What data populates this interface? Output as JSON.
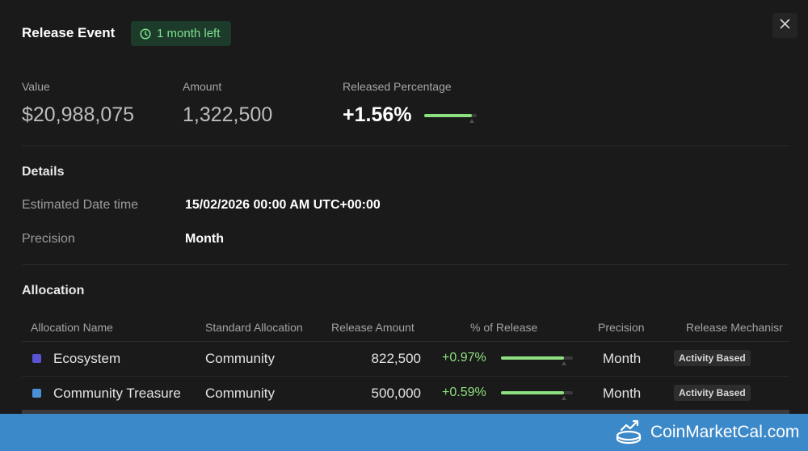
{
  "header": {
    "title": "Release Event",
    "badge": "1 month left"
  },
  "stats": {
    "value": {
      "label": "Value",
      "value": "$20,988,075"
    },
    "amount": {
      "label": "Amount",
      "value": "1,322,500"
    },
    "released": {
      "label": "Released Percentage",
      "value": "+1.56%",
      "progress": 0.9
    }
  },
  "details": {
    "title": "Details",
    "date_label": "Estimated Date time",
    "date_value": "15/02/2026 00:00 AM UTC+00:00",
    "precision_label": "Precision",
    "precision_value": "Month"
  },
  "allocation": {
    "title": "Allocation",
    "columns": [
      "Allocation Name",
      "Standard Allocation",
      "Release Amount",
      "% of Release",
      "Precision",
      "Release Mechanisr"
    ],
    "rows": [
      {
        "color": "#5a53d4",
        "name": "Ecosystem",
        "standard": "Community",
        "amount": "822,500",
        "pct": "+0.97%",
        "progress": 0.88,
        "precision": "Month",
        "mechanism": "Activity Based"
      },
      {
        "color": "#4a90d9",
        "name": "Community Treasure",
        "standard": "Community",
        "amount": "500,000",
        "pct": "+0.59%",
        "progress": 0.88,
        "precision": "Month",
        "mechanism": "Activity Based"
      }
    ]
  },
  "footer": {
    "brand": "CoinMarketCal.com"
  },
  "colors": {
    "accent_green": "#8de07f",
    "footer_blue": "#3c89c9",
    "background": "#1b1a1a"
  }
}
